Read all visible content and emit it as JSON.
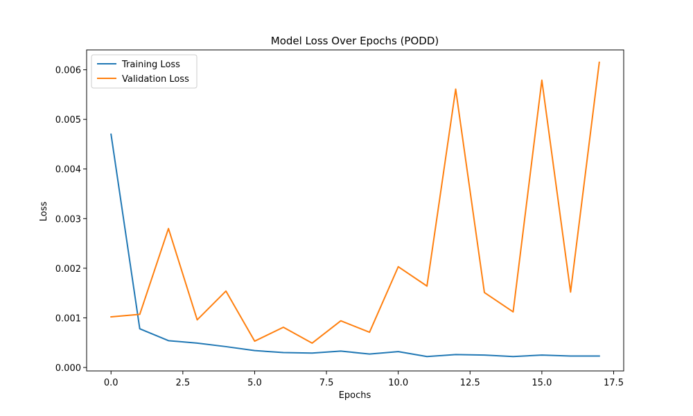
{
  "chart_data": {
    "type": "line",
    "title": "Model Loss Over Epochs (PODD)",
    "xlabel": "Epochs",
    "ylabel": "Loss",
    "xlim": [
      -0.85,
      17.85
    ],
    "ylim": [
      -7e-05,
      0.0064
    ],
    "xticks": [
      0.0,
      2.5,
      5.0,
      7.5,
      10.0,
      12.5,
      15.0,
      17.5
    ],
    "xtick_labels": [
      "0.0",
      "2.5",
      "5.0",
      "7.5",
      "10.0",
      "12.5",
      "15.0",
      "17.5"
    ],
    "yticks": [
      0.0,
      0.001,
      0.002,
      0.003,
      0.004,
      0.005,
      0.006
    ],
    "ytick_labels": [
      "0.000",
      "0.001",
      "0.002",
      "0.003",
      "0.004",
      "0.005",
      "0.006"
    ],
    "grid": false,
    "legend_position": "top-left",
    "x": [
      0,
      1,
      2,
      3,
      4,
      5,
      6,
      7,
      8,
      9,
      10,
      11,
      12,
      13,
      14,
      15,
      16,
      17
    ],
    "series": [
      {
        "name": "Training Loss",
        "color": "#1f77b4",
        "values": [
          0.0047,
          0.00078,
          0.00054,
          0.00049,
          0.00042,
          0.00034,
          0.0003,
          0.00029,
          0.00033,
          0.00027,
          0.00032,
          0.00022,
          0.00026,
          0.00025,
          0.00022,
          0.00025,
          0.00023,
          0.00023
        ]
      },
      {
        "name": "Validation Loss",
        "color": "#ff7f0e",
        "values": [
          0.00102,
          0.00107,
          0.0028,
          0.00096,
          0.00154,
          0.00053,
          0.00081,
          0.00049,
          0.00094,
          0.00071,
          0.00203,
          0.00164,
          0.00561,
          0.00151,
          0.00112,
          0.00579,
          0.00152,
          0.00615
        ]
      }
    ]
  }
}
